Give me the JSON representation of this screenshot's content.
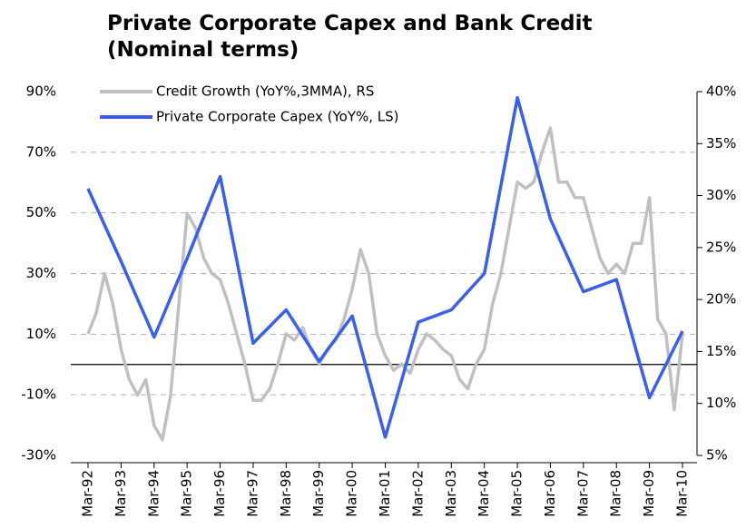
{
  "chart_data": {
    "type": "line",
    "title": "Private Corporate Capex and Bank Credit (Nominal terms)",
    "categories": [
      "Mar-92",
      null,
      null,
      null,
      "Mar-93",
      null,
      null,
      null,
      "Mar-94",
      null,
      null,
      null,
      "Mar-95",
      null,
      null,
      null,
      "Mar-96",
      null,
      null,
      null,
      "Mar-97",
      null,
      null,
      null,
      "Mar-98",
      null,
      null,
      null,
      "Mar-99",
      null,
      null,
      null,
      "Mar-00",
      null,
      null,
      null,
      "Mar-01",
      null,
      null,
      null,
      "Mar-02",
      null,
      null,
      null,
      "Mar-03",
      null,
      null,
      null,
      "Mar-04",
      null,
      null,
      null,
      "Mar-05",
      null,
      null,
      null,
      "Mar-06",
      null,
      null,
      null,
      "Mar-07",
      null,
      null,
      null,
      "Mar-08",
      null,
      null,
      null,
      "Mar-09",
      null,
      null,
      null,
      "Mar-10"
    ],
    "series": [
      {
        "name": "Credit Growth (YoY%,3MMA), RS",
        "color": "#c0c0c0",
        "axis": "y2",
        "values": [
          16.7,
          18.7,
          22.5,
          19.6,
          15.2,
          12.3,
          10.8,
          12.3,
          7.9,
          6.5,
          10.8,
          19.6,
          28.3,
          26.9,
          24,
          22.5,
          21.9,
          19.6,
          16.7,
          13.8,
          10.3,
          10.3,
          11.4,
          13.8,
          16.7,
          16.1,
          17.3,
          15.2,
          13.8,
          15.2,
          16.1,
          18.1,
          21,
          24.8,
          22.5,
          16.7,
          14.6,
          13.2,
          13.8,
          12.9,
          15.2,
          16.7,
          16.1,
          15.2,
          14.6,
          12.3,
          11.4,
          13.8,
          15.2,
          19.6,
          22.5,
          26.9,
          31.3,
          30.7,
          31.3,
          34.2,
          36.5,
          31.3,
          31.3,
          29.8,
          29.8,
          26.9,
          24,
          22.5,
          23.4,
          22.5,
          25.4,
          25.4,
          29.8,
          18.1,
          16.7,
          9.4,
          16.7
        ]
      },
      {
        "name": "Private Corporate Capex (YoY%, LS)",
        "color": "#3a5ff0",
        "values": [
          58,
          52,
          46,
          40,
          34,
          27.8,
          21.5,
          15.3,
          9,
          15.5,
          22,
          28.5,
          35,
          41.8,
          48.5,
          55.3,
          62,
          48.3,
          34.5,
          20.8,
          7,
          9.8,
          12.5,
          15.3,
          18,
          13.8,
          9.5,
          5.3,
          1,
          4.8,
          8.5,
          12.3,
          16,
          6,
          -4,
          -14,
          -24,
          -14.5,
          -5,
          4.5,
          14,
          15,
          16,
          17,
          18,
          21,
          24,
          27,
          30,
          44.5,
          59,
          73.5,
          88,
          78,
          68,
          58,
          48,
          42,
          36,
          30,
          24,
          25,
          26,
          27,
          28,
          18.3,
          8.5,
          -1.3,
          -11,
          -5.5,
          0,
          5.5,
          11
        ]
      }
    ],
    "ylim": [
      -30,
      90
    ],
    "yticks": [
      {
        "value": -30,
        "label": "-30%"
      },
      {
        "value": -10,
        "label": "-10%"
      },
      {
        "value": 10,
        "label": "10%"
      },
      {
        "value": 30,
        "label": "30%"
      },
      {
        "value": 50,
        "label": "50%"
      },
      {
        "value": 70,
        "label": "70%"
      },
      {
        "value": 90,
        "label": "90%"
      }
    ],
    "y2lim": [
      5,
      40
    ],
    "y2ticks": [
      {
        "value": 5,
        "label": "5%"
      },
      {
        "value": 10,
        "label": "10%"
      },
      {
        "value": 15,
        "label": "15%"
      },
      {
        "value": 20,
        "label": "20%"
      },
      {
        "value": 25,
        "label": "25%"
      },
      {
        "value": 30,
        "label": "30%"
      },
      {
        "value": 35,
        "label": "35%"
      },
      {
        "value": 40,
        "label": "40%"
      }
    ],
    "grid": true,
    "legend": "top-left"
  }
}
